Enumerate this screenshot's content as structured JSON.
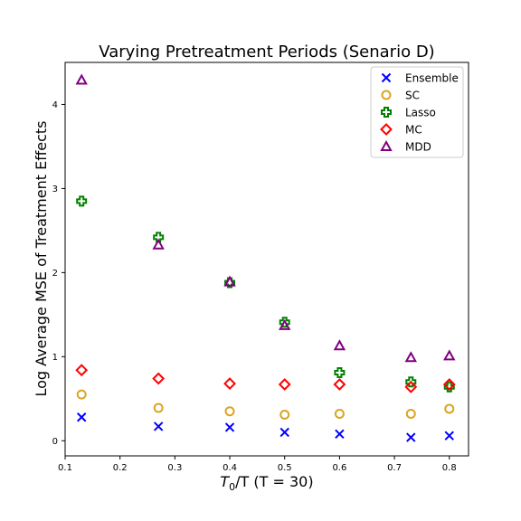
{
  "chart_data": {
    "type": "scatter",
    "title": "Varying Pretreatment Periods (Senario D)",
    "xlabel_main": "T",
    "xlabel_sub": "0",
    "xlabel_rest": "/T (T = 30)",
    "ylabel": "Log Average MSE of Treatment Effects",
    "xlim": [
      0.1,
      0.835
    ],
    "ylim": [
      -0.18,
      4.5
    ],
    "xticks": [
      0.1,
      0.2,
      0.3,
      0.4,
      0.5,
      0.6,
      0.7,
      0.8
    ],
    "xtick_labels": [
      "0.1",
      "0.2",
      "0.3",
      "0.4",
      "0.5",
      "0.6",
      "0.7",
      "0.8"
    ],
    "yticks": [
      0,
      1,
      2,
      3,
      4
    ],
    "ytick_labels": [
      "0",
      "1",
      "2",
      "3",
      "4"
    ],
    "legend_position": "top-right",
    "x": [
      0.13,
      0.27,
      0.4,
      0.5,
      0.6,
      0.73,
      0.8
    ],
    "series": [
      {
        "name": "Ensemble",
        "marker": "x",
        "color": "#0000ff",
        "values": [
          0.28,
          0.17,
          0.16,
          0.1,
          0.08,
          0.04,
          0.06
        ]
      },
      {
        "name": "SC",
        "marker": "circle",
        "color": "#daa520",
        "values": [
          0.55,
          0.39,
          0.35,
          0.31,
          0.32,
          0.32,
          0.38
        ]
      },
      {
        "name": "Lasso",
        "marker": "plus",
        "color": "#008000",
        "values": [
          2.85,
          2.42,
          1.88,
          1.41,
          0.81,
          0.7,
          0.64
        ]
      },
      {
        "name": "MC",
        "marker": "diamond",
        "color": "#ff0000",
        "values": [
          0.84,
          0.74,
          0.68,
          0.67,
          0.67,
          0.64,
          0.67
        ]
      },
      {
        "name": "MDD",
        "marker": "triangle",
        "color": "#800080",
        "values": [
          4.29,
          2.33,
          1.89,
          1.37,
          1.13,
          0.99,
          1.01
        ]
      }
    ]
  }
}
